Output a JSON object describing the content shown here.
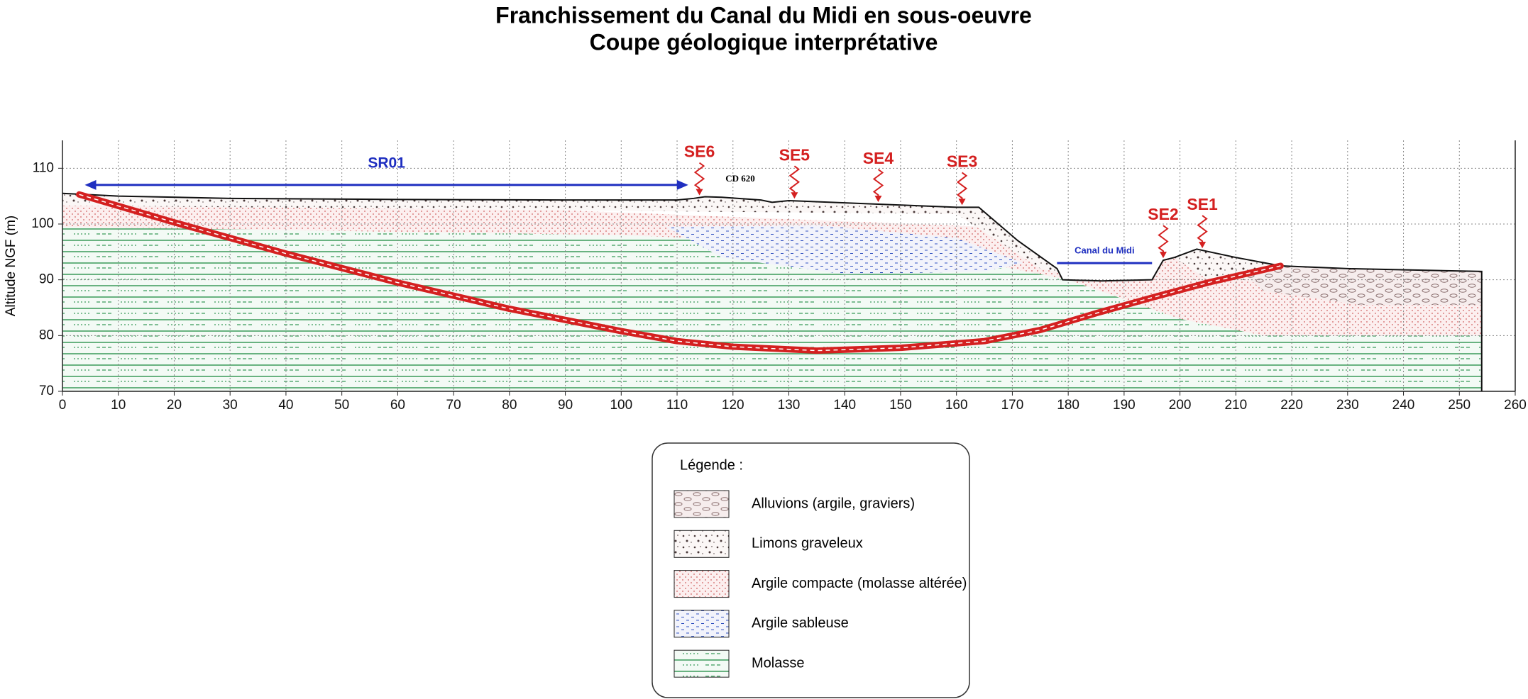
{
  "chart_data": {
    "type": "cross-section",
    "title": "Franchissement du Canal du Midi en sous-oeuvre",
    "subtitle": "Coupe géologique interprétative",
    "y_label": "Altitude NGF (m)",
    "xlim": [
      0,
      260
    ],
    "xticks": [
      0,
      10,
      20,
      30,
      40,
      50,
      60,
      70,
      80,
      90,
      100,
      110,
      120,
      130,
      140,
      150,
      160,
      170,
      180,
      190,
      200,
      210,
      220,
      230,
      240,
      250,
      260
    ],
    "ylim": [
      70,
      115
    ],
    "yticks": [
      70,
      80,
      90,
      100,
      110
    ],
    "grid": true,
    "ground": {
      "x": [
        0,
        10,
        30,
        60,
        90,
        110,
        113,
        115,
        118,
        125,
        127,
        130,
        140,
        150,
        160,
        164,
        171,
        178,
        179,
        186,
        195,
        197,
        199,
        203,
        210,
        218,
        230,
        254
      ],
      "y": [
        105.5,
        105,
        104.6,
        104.4,
        104.3,
        104.3,
        104.6,
        104.9,
        104.8,
        104.3,
        103.9,
        104.2,
        103.8,
        103.4,
        103,
        103,
        97,
        92,
        90,
        89.8,
        90,
        93.5,
        94,
        95.5,
        94,
        92.5,
        92,
        91.5
      ]
    },
    "tunnel": {
      "color": "#d42020",
      "x": [
        3,
        20,
        40,
        60,
        80,
        100,
        110,
        120,
        135,
        150,
        165,
        175,
        185,
        195,
        205,
        218
      ],
      "y": [
        105.3,
        100.3,
        94.7,
        89.5,
        84.8,
        80.8,
        79,
        78,
        77.3,
        77.8,
        79,
        81,
        84,
        86.8,
        89.5,
        92.5
      ]
    },
    "boreholes": {
      "color": "#d42020",
      "names": [
        "SE6",
        "SE5",
        "SE4",
        "SE3",
        "SE2",
        "SE1"
      ],
      "x": [
        114,
        131,
        146,
        161,
        197,
        204
      ]
    },
    "sr01": {
      "label": "SR01",
      "color": "#1f2fc0",
      "x": [
        4,
        112
      ],
      "y": 107
    },
    "canal": {
      "label": "Canal du Midi",
      "color": "#1f2fc0",
      "x": [
        178,
        195
      ],
      "y": 93
    },
    "road_label": "CD 620",
    "legend_title": "Légende :",
    "layers": [
      {
        "name": "Alluvions (argile, graviers)",
        "pattern": "ovals",
        "color": "#8b6f6f",
        "polygons": [
          {
            "x": [
              212,
              219,
              254,
              254,
              232,
              215
            ],
            "y": [
              90.5,
              93,
              93,
              85.5,
              85.5,
              88
            ]
          }
        ]
      },
      {
        "name": "Limons graveleux",
        "pattern": "speckles",
        "color": "#4a3a3a",
        "polygons": [
          {
            "x": [
              0,
              165,
              172,
              180,
              175,
              160,
              0
            ],
            "y": [
              108,
              108,
              97,
              91,
              92,
              101.8,
              103.3
            ]
          },
          {
            "x": [
              196,
              205,
              219,
              215,
              205
            ],
            "y": [
              96,
              97,
              92.5,
              90,
              90
            ]
          }
        ]
      },
      {
        "name": "Argile compacte (molasse altérée)",
        "pattern": "dots",
        "color": "#d06060",
        "polygons": [
          {
            "x": [
              0,
              254,
              254,
              0
            ],
            "y": [
              70,
              70,
              96,
              106
            ]
          }
        ]
      },
      {
        "name": "Argile sableuse",
        "pattern": "dashes",
        "color": "#3050c0",
        "polygons": [
          {
            "x": [
              108,
              135,
              160,
              172,
              165,
              140,
              118
            ],
            "y": [
              99.5,
              99.8,
              97.5,
              93,
              91.5,
              91,
              94
            ]
          }
        ]
      },
      {
        "name": "Molasse",
        "pattern": "bricks",
        "color": "#3a9a5a",
        "polygons": [
          {
            "x": [
              0,
              0,
              100,
              150,
              180,
              200,
              215,
              254,
              254
            ],
            "y": [
              70,
              99.5,
              98,
              96,
              90,
              83,
              80,
              80,
              70
            ]
          }
        ]
      }
    ]
  }
}
